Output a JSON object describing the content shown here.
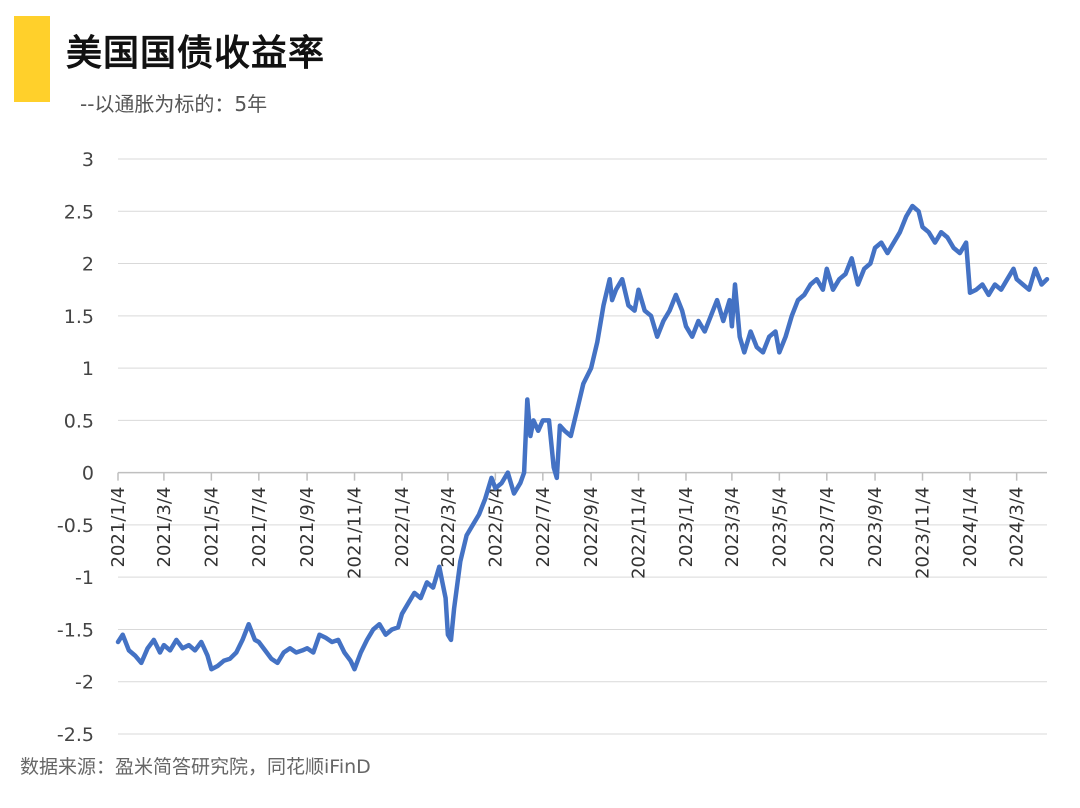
{
  "header": {
    "title": "美国国债收益率",
    "subtitle": "--以通胀为标的：5年",
    "accent_color": "#FFD02B"
  },
  "footer": {
    "source": "数据来源：盈米简答研究院，同花顺iFinD"
  },
  "chart_data": {
    "type": "line",
    "title": "美国国债收益率",
    "subtitle": "--以通胀为标的：5年",
    "xlabel": "",
    "ylabel": "",
    "ylim": [
      -2.5,
      3
    ],
    "yticks": [
      -2.5,
      -2,
      -1.5,
      -1,
      -0.5,
      0,
      0.5,
      1,
      1.5,
      2,
      2.5,
      3
    ],
    "x_tick_labels": [
      "2021/1/4",
      "2021/3/4",
      "2021/5/4",
      "2021/7/4",
      "2021/9/4",
      "2021/11/4",
      "2022/1/4",
      "2022/3/4",
      "2022/5/4",
      "2022/7/4",
      "2022/9/4",
      "2022/11/4",
      "2023/1/4",
      "2023/3/4",
      "2023/5/4",
      "2023/7/4",
      "2023/9/4",
      "2023/11/4",
      "2024/1/4",
      "2024/3/4"
    ],
    "xlim": [
      "2021/1/4",
      "2024/4/12"
    ],
    "grid": true,
    "line_color": "#4472C4",
    "series": [
      {
        "name": "",
        "x": [
          "2021/1/4",
          "2021/1/10",
          "2021/1/18",
          "2021/1/26",
          "2021/2/3",
          "2021/2/11",
          "2021/2/19",
          "2021/2/27",
          "2021/3/4",
          "2021/3/12",
          "2021/3/20",
          "2021/3/28",
          "2021/4/5",
          "2021/4/13",
          "2021/4/21",
          "2021/4/29",
          "2021/5/4",
          "2021/5/12",
          "2021/5/20",
          "2021/5/28",
          "2021/6/5",
          "2021/6/13",
          "2021/6/21",
          "2021/6/29",
          "2021/7/4",
          "2021/7/12",
          "2021/7/20",
          "2021/7/28",
          "2021/8/5",
          "2021/8/13",
          "2021/8/21",
          "2021/8/29",
          "2021/9/4",
          "2021/9/12",
          "2021/9/20",
          "2021/9/28",
          "2021/10/6",
          "2021/10/14",
          "2021/10/22",
          "2021/10/30",
          "2021/11/4",
          "2021/11/12",
          "2021/11/20",
          "2021/11/28",
          "2021/12/6",
          "2021/12/14",
          "2021/12/22",
          "2021/12/30",
          "2022/1/4",
          "2022/1/12",
          "2022/1/20",
          "2022/1/28",
          "2022/2/5",
          "2022/2/13",
          "2022/2/21",
          "2022/2/25",
          "2022/3/1",
          "2022/3/4",
          "2022/3/8",
          "2022/3/12",
          "2022/3/20",
          "2022/3/28",
          "2022/4/5",
          "2022/4/13",
          "2022/4/21",
          "2022/4/29",
          "2022/5/4",
          "2022/5/12",
          "2022/5/20",
          "2022/5/28",
          "2022/6/5",
          "2022/6/10",
          "2022/6/14",
          "2022/6/18",
          "2022/6/22",
          "2022/6/28",
          "2022/7/4",
          "2022/7/12",
          "2022/7/18",
          "2022/7/22",
          "2022/7/26",
          "2022/8/1",
          "2022/8/9",
          "2022/8/17",
          "2022/8/25",
          "2022/9/4",
          "2022/9/12",
          "2022/9/20",
          "2022/9/28",
          "2022/10/1",
          "2022/10/6",
          "2022/10/14",
          "2022/10/22",
          "2022/10/30",
          "2022/11/4",
          "2022/11/12",
          "2022/11/20",
          "2022/11/28",
          "2022/12/6",
          "2022/12/14",
          "2022/12/22",
          "2022/12/30",
          "2023/1/4",
          "2023/1/12",
          "2023/1/20",
          "2023/1/28",
          "2023/2/5",
          "2023/2/13",
          "2023/2/21",
          "2023/3/1",
          "2023/3/4",
          "2023/3/8",
          "2023/3/14",
          "2023/3/20",
          "2023/3/28",
          "2023/4/5",
          "2023/4/13",
          "2023/4/21",
          "2023/4/29",
          "2023/5/4",
          "2023/5/12",
          "2023/5/20",
          "2023/5/28",
          "2023/6/5",
          "2023/6/13",
          "2023/6/21",
          "2023/6/29",
          "2023/7/4",
          "2023/7/12",
          "2023/7/20",
          "2023/7/28",
          "2023/8/5",
          "2023/8/13",
          "2023/8/21",
          "2023/8/29",
          "2023/9/4",
          "2023/9/12",
          "2023/9/20",
          "2023/9/28",
          "2023/10/6",
          "2023/10/14",
          "2023/10/22",
          "2023/10/30",
          "2023/11/4",
          "2023/11/12",
          "2023/11/20",
          "2023/11/28",
          "2023/12/6",
          "2023/12/14",
          "2023/12/22",
          "2023/12/30",
          "2024/1/4",
          "2024/1/12",
          "2024/1/20",
          "2024/1/28",
          "2024/2/5",
          "2024/2/13",
          "2024/2/21",
          "2024/2/29",
          "2024/3/4",
          "2024/3/12",
          "2024/3/20",
          "2024/3/28",
          "2024/4/5",
          "2024/4/12"
        ],
        "y": [
          -1.62,
          -1.55,
          -1.7,
          -1.75,
          -1.82,
          -1.68,
          -1.6,
          -1.72,
          -1.65,
          -1.7,
          -1.6,
          -1.68,
          -1.65,
          -1.7,
          -1.62,
          -1.75,
          -1.88,
          -1.85,
          -1.8,
          -1.78,
          -1.72,
          -1.6,
          -1.45,
          -1.6,
          -1.62,
          -1.7,
          -1.78,
          -1.82,
          -1.72,
          -1.68,
          -1.72,
          -1.7,
          -1.68,
          -1.72,
          -1.55,
          -1.58,
          -1.62,
          -1.6,
          -1.72,
          -1.8,
          -1.88,
          -1.72,
          -1.6,
          -1.5,
          -1.45,
          -1.55,
          -1.5,
          -1.48,
          -1.35,
          -1.25,
          -1.15,
          -1.2,
          -1.05,
          -1.1,
          -0.9,
          -1.05,
          -1.2,
          -1.55,
          -1.6,
          -1.3,
          -0.85,
          -0.6,
          -0.5,
          -0.4,
          -0.25,
          -0.05,
          -0.15,
          -0.1,
          0.0,
          -0.2,
          -0.1,
          0.0,
          0.7,
          0.35,
          0.5,
          0.4,
          0.5,
          0.5,
          0.05,
          -0.05,
          0.45,
          0.4,
          0.35,
          0.6,
          0.85,
          1.0,
          1.25,
          1.6,
          1.85,
          1.65,
          1.75,
          1.85,
          1.6,
          1.55,
          1.75,
          1.55,
          1.5,
          1.3,
          1.45,
          1.55,
          1.7,
          1.55,
          1.4,
          1.3,
          1.45,
          1.35,
          1.5,
          1.65,
          1.45,
          1.65,
          1.4,
          1.8,
          1.3,
          1.15,
          1.35,
          1.2,
          1.15,
          1.3,
          1.35,
          1.15,
          1.3,
          1.5,
          1.65,
          1.7,
          1.8,
          1.85,
          1.75,
          1.95,
          1.75,
          1.85,
          1.9,
          2.05,
          1.8,
          1.95,
          2.0,
          2.15,
          2.2,
          2.1,
          2.2,
          2.3,
          2.45,
          2.55,
          2.5,
          2.35,
          2.3,
          2.2,
          2.3,
          2.25,
          2.15,
          2.1,
          2.2,
          1.72,
          1.75,
          1.8,
          1.7,
          1.8,
          1.75,
          1.85,
          1.95,
          1.85,
          1.8,
          1.75,
          1.95,
          1.8,
          1.85
        ]
      }
    ]
  }
}
